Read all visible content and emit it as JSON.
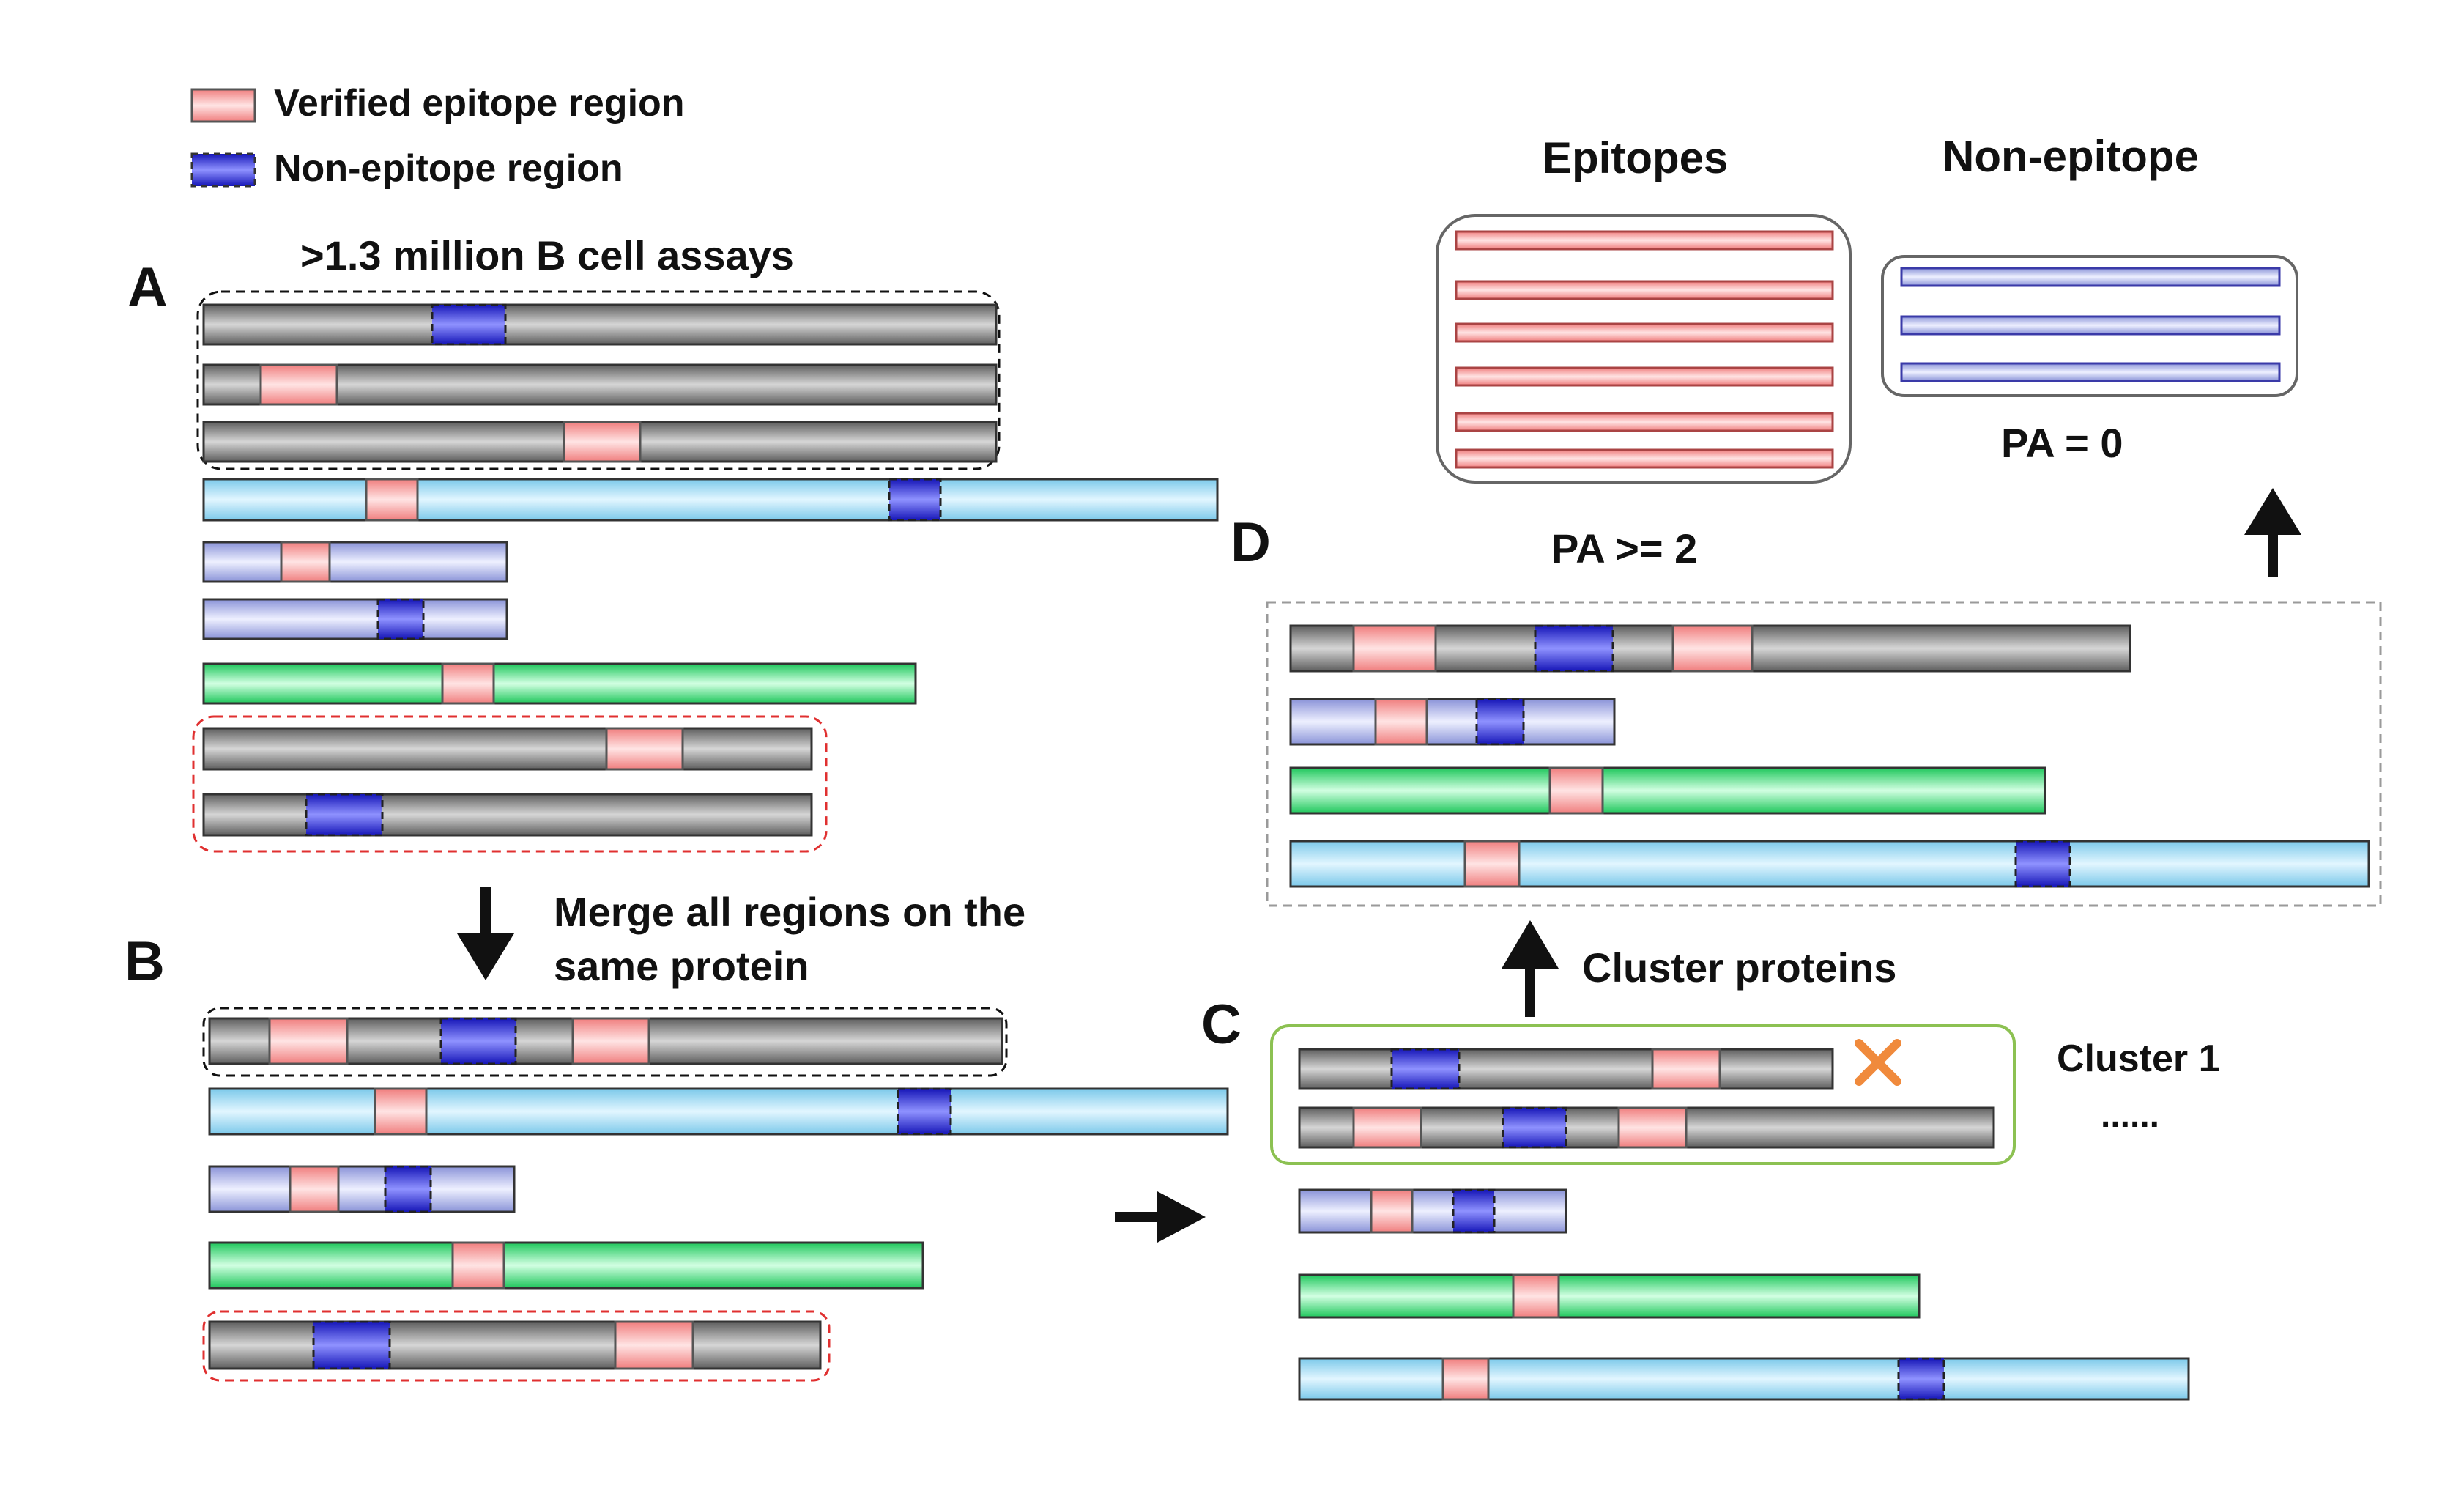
{
  "legend": {
    "epitope_label": "Verified epitope region",
    "nonepitope_label": "Non-epitope region"
  },
  "panels": {
    "a": {
      "letter": "A",
      "title": ">1.3 million B cell assays"
    },
    "b": {
      "letter": "B",
      "step_line1": "Merge all regions on the",
      "step_line2": "same protein"
    },
    "c": {
      "letter": "C",
      "step_up": "Cluster proteins",
      "cluster_label": "Cluster 1",
      "ellipsis": "......"
    },
    "d": {
      "letter": "D",
      "epitopes_title": "Epitopes",
      "nonepitope_title": "Non-epitope",
      "pa_epitope": "PA >= 2",
      "pa_nonepitope": "PA = 0"
    }
  },
  "colors": {
    "gray": "#9a9a9a",
    "cyan": "#a9e0f6",
    "lavender": "#c2c8f0",
    "green": "#5fe88f",
    "epitope": "#f6aaaa",
    "nonepitope": "#3838e0",
    "black_box": "#111111",
    "red_box": "#e03030",
    "cluster_box": "#8cc152",
    "reject_mark": "#f08a3c"
  }
}
